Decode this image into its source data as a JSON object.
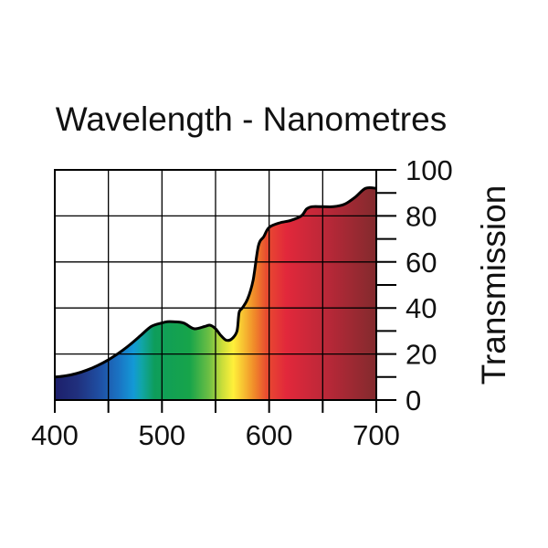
{
  "chart_data": {
    "type": "area",
    "title": "Wavelength - Nanometres",
    "xlabel": "Wavelength - Nanometres",
    "ylabel": "Transmission",
    "xlim": [
      400,
      700
    ],
    "ylim": [
      0,
      100
    ],
    "x_ticks": [
      "400",
      "500",
      "600",
      "700"
    ],
    "y_ticks": [
      "0",
      "20",
      "40",
      "60",
      "80",
      "100"
    ],
    "grid": true,
    "series": [
      {
        "name": "Transmission",
        "x": [
          400,
          410,
          420,
          430,
          440,
          450,
          460,
          470,
          480,
          490,
          500,
          505,
          510,
          520,
          530,
          540,
          545,
          550,
          555,
          560,
          565,
          570,
          572,
          575,
          580,
          585,
          590,
          595,
          600,
          610,
          620,
          630,
          635,
          640,
          650,
          660,
          670,
          680,
          690,
          700
        ],
        "values": [
          10,
          10.5,
          11.5,
          13,
          15,
          17.5,
          20.5,
          24,
          28,
          32,
          33.5,
          34,
          34,
          33.5,
          31,
          32,
          32.5,
          31,
          28,
          26,
          26.5,
          30,
          38,
          40,
          44,
          52,
          67,
          71,
          75,
          77,
          78,
          80,
          83,
          84,
          84,
          84,
          85,
          88,
          92,
          92
        ]
      }
    ]
  }
}
